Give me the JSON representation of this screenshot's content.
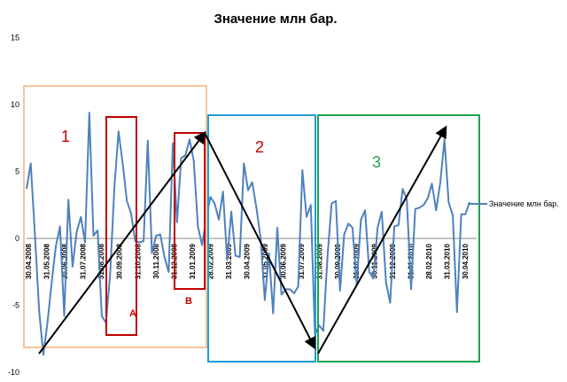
{
  "chart_data": {
    "type": "line",
    "title": "Значение млн бар.",
    "ylim": [
      -10,
      15
    ],
    "yticks": [
      15,
      10,
      5,
      0,
      -5,
      -10
    ],
    "grid": false,
    "legend_position": "right",
    "x_tick_labels": [
      "30.04.2008",
      "31.05.2008",
      "30.06.2008",
      "31.07.2008",
      "31.08.2008",
      "30.09.2008",
      "31.10.2008",
      "30.11.2008",
      "31.12.2008",
      "31.01.2009",
      "28.02.2009",
      "31.03.2009",
      "30.04.2009",
      "31.05.2009",
      "30.06.2009",
      "31.07.2009",
      "31.08.2009",
      "30.09.2009",
      "31.10.2009",
      "30.11.2009",
      "31.12.2009",
      "31.01.2010",
      "28.02.2010",
      "31.03.2010",
      "30.04.2010"
    ],
    "series": [
      {
        "name": "Значение млн бар.",
        "color": "#4f81bd",
        "values": [
          3.7,
          5.6,
          0.3,
          -5.4,
          -8.7,
          -6.3,
          -3.3,
          -0.6,
          0.9,
          -5.8,
          2.9,
          -2.1,
          0.5,
          1.6,
          -0.3,
          9.4,
          0.2,
          0.6,
          -5.8,
          -6.3,
          -2.7,
          3.8,
          8.0,
          5.6,
          2.8,
          1.9,
          -0.2,
          -0.3,
          -0.2,
          7.3,
          -1.1,
          0.2,
          0.3,
          -1.4,
          -2.5,
          7.1,
          1.2,
          6.0,
          6.2,
          7.4,
          5.8,
          0.9,
          -0.5,
          1.5,
          3.1,
          2.6,
          1.4,
          3.5,
          -1.6,
          2.0,
          -1.3,
          -1.4,
          5.6,
          3.6,
          4.2,
          2.3,
          0.0,
          -4.6,
          -1.1,
          -5.6,
          0.8,
          -4.2,
          -3.8,
          -3.8,
          -4.1,
          -3.6,
          5.1,
          1.6,
          2.5,
          -7.2,
          -6.5,
          -6.9,
          -1.4,
          2.6,
          2.8,
          -3.9,
          0.3,
          1.1,
          0.8,
          -3.4,
          1.4,
          2.1,
          -2.5,
          -3.0,
          0.8,
          2.0,
          -3.3,
          -4.8,
          0.9,
          1.0,
          3.7,
          2.9,
          -3.8,
          2.2,
          2.3,
          2.5,
          3.0,
          4.1,
          2.1,
          4.2,
          7.4,
          2.7,
          1.7,
          -5.5,
          1.8,
          1.8,
          2.7
        ]
      }
    ],
    "annotations": {
      "boxes": [
        {
          "label": "1",
          "color": "#f5c49c",
          "label_color": "#c00000"
        },
        {
          "label": "A",
          "color": "#c00000",
          "label_color": "#c00000"
        },
        {
          "label": "B",
          "color": "#c00000",
          "label_color": "#c00000"
        },
        {
          "label": "2",
          "color": "#1f9cd6",
          "label_color": "#c00000"
        },
        {
          "label": "3",
          "color": "#20a050",
          "label_color": "#20a050"
        }
      ],
      "arrow_color": "#000000"
    }
  }
}
